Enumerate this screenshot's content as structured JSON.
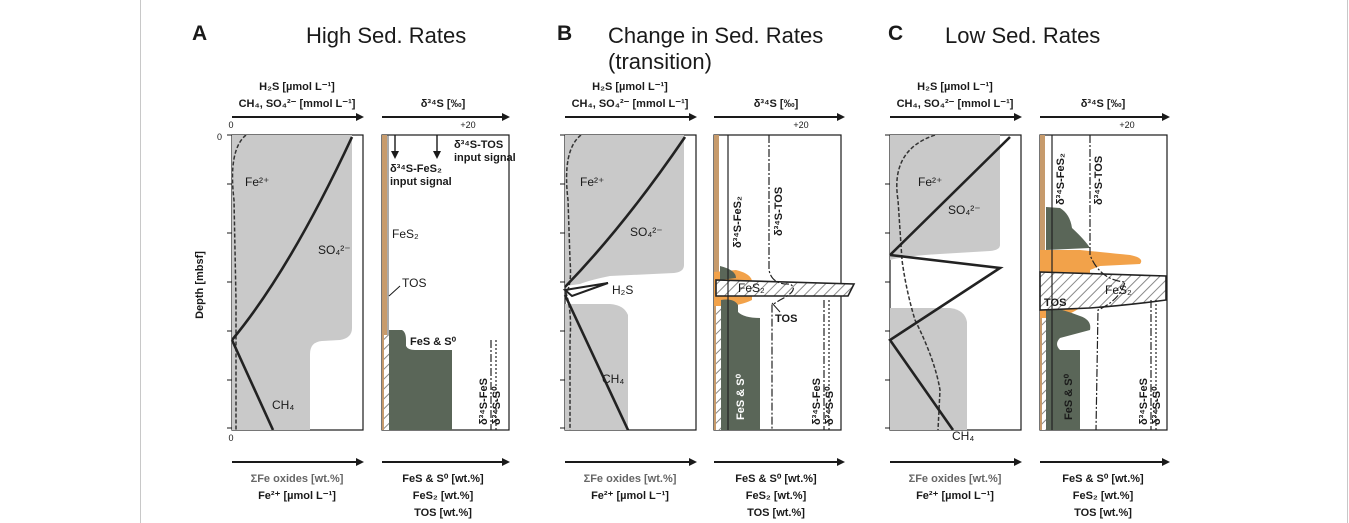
{
  "figure": {
    "y_axis_label": "Depth [mbsf]",
    "panels": [
      {
        "letter": "A",
        "title_lines": [
          "High Sed. Rates"
        ],
        "left_top_axis": [
          "H₂S [µmol L⁻¹]",
          "CH₄, SO₄²⁻ [mmol L⁻¹]"
        ],
        "right_top_axis": "δ³⁴S [‰]",
        "tick_zero_top": "0",
        "tick_twenty": "+20",
        "depth_zero": "0",
        "tick_zero_bottom": "0",
        "left_bottom_axis": [
          "ΣFe oxides [wt.%]",
          "Fe²⁺ [µmol L⁻¹]"
        ],
        "right_bottom_axis": [
          "FeS & S⁰ [wt.%]",
          "FeS₂ [wt.%]",
          "TOS [wt.%]"
        ],
        "curve_labels": {
          "fe2": "Fe²⁺",
          "so4": "SO₄²⁻",
          "ch4": "CH₄",
          "fes2": "FeS₂",
          "tos": "TOS",
          "fes_s0": "FeS & S⁰",
          "d34s_fes2_input": [
            "δ³⁴S-FeS₂",
            "input signal"
          ],
          "d34s_tos_input": [
            "δ³⁴S-TOS",
            "input signal"
          ],
          "d34s_fes": "δ³⁴S-FeS",
          "d34s_s0": "δ³⁴S-S⁰"
        }
      },
      {
        "letter": "B",
        "title_lines": [
          "Change in Sed. Rates",
          "(transition)"
        ],
        "left_top_axis": [
          "H₂S [µmol L⁻¹]",
          "CH₄, SO₄²⁻ [mmol L⁻¹]"
        ],
        "right_top_axis": "δ³⁴S [‰]",
        "tick_twenty": "+20",
        "left_bottom_axis": [
          "ΣFe oxides [wt.%]",
          "Fe²⁺ [µmol L⁻¹]"
        ],
        "right_bottom_axis": [
          "FeS & S⁰ [wt.%]",
          "FeS₂ [wt.%]",
          "TOS [wt.%]"
        ],
        "curve_labels": {
          "fe2": "Fe²⁺",
          "so4": "SO₄²⁻",
          "h2s": "H₂S",
          "ch4": "CH₄",
          "fes2": "FeS₂",
          "tos": "TOS",
          "fes_s0": "FeS & S⁰",
          "d34s_fes2": "δ³⁴S-FeS₂",
          "d34s_tos": "δ³⁴S-TOS",
          "d34s_fes": "δ³⁴S-FeS",
          "d34s_s0": "δ³⁴S-S⁰"
        }
      },
      {
        "letter": "C",
        "title_lines": [
          "Low Sed. Rates"
        ],
        "left_top_axis": [
          "H₂S [µmol L⁻¹]",
          "CH₄, SO₄²⁻ [mmol L⁻¹]"
        ],
        "right_top_axis": "δ³⁴S [‰]",
        "tick_twenty": "+20",
        "left_bottom_axis": [
          "ΣFe oxides [wt.%]",
          "Fe²⁺ [µmol L⁻¹]"
        ],
        "right_bottom_axis": [
          "FeS & S⁰ [wt.%]",
          "FeS₂ [wt.%]",
          "TOS [wt.%]"
        ],
        "curve_labels": {
          "fe2": "Fe²⁺",
          "so4": "SO₄²⁻",
          "ch4": "CH₄",
          "fes2": "FeS₂",
          "tos": "TOS",
          "fes_s0": "FeS & S⁰",
          "d34s_fes2": "δ³⁴S-FeS₂",
          "d34s_tos": "δ³⁴S-TOS",
          "d34s_fes": "δ³⁴S-FeS",
          "d34s_s0": "δ³⁴S-S⁰"
        }
      }
    ],
    "colors": {
      "light_gray_fill": "#c9c9c9",
      "dark_green_fill": "#5a6658",
      "orange_fill": "#f2a24a",
      "curve_stroke": "#222222",
      "tan_fes2": "#c79b6c"
    }
  }
}
